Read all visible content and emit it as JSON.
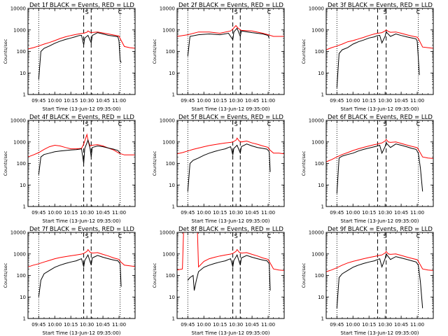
{
  "colors": {
    "events": "#000000",
    "lld": "#ff0000",
    "background": "#ffffff",
    "axes": "#000000"
  },
  "shared": {
    "xlabel": "Start Time (13-Jun-12 09:35:00)",
    "ylabel": "Counts/sec",
    "xticks": [
      "09:45",
      "10:00",
      "10:15",
      "10:30",
      "10:45",
      "11:00"
    ],
    "xtick_minutes": [
      10,
      25,
      40,
      55,
      70,
      85
    ],
    "xlim_minutes": [
      0,
      100
    ],
    "yticks": [
      "1",
      "10",
      "100",
      "1000",
      "10000"
    ],
    "ylim": [
      1,
      10000
    ],
    "yscale": "log",
    "marker_S": "S",
    "marker_C": "C"
  },
  "chart_data": [
    {
      "type": "line",
      "title": "Det 1f BLACK = Events, RED = LLD",
      "S_label_minute": 55,
      "C_label_minute": 86,
      "dotted_minutes": [
        10,
        86
      ],
      "dashed_minutes": [
        52,
        59
      ],
      "series": [
        {
          "name": "BLACK = Events",
          "x": [
            10,
            12,
            15,
            20,
            25,
            30,
            35,
            40,
            44,
            48,
            50,
            52,
            53,
            56,
            59,
            60,
            65,
            70,
            75,
            80,
            84,
            85,
            86,
            87
          ],
          "y": [
            5,
            100,
            140,
            180,
            240,
            300,
            360,
            420,
            480,
            550,
            560,
            200,
            420,
            560,
            250,
            550,
            750,
            650,
            560,
            520,
            480,
            300,
            40,
            30
          ]
        },
        {
          "name": "RED = LLD",
          "x": [
            0,
            5,
            10,
            15,
            20,
            25,
            30,
            35,
            40,
            45,
            50,
            52,
            55,
            56,
            58,
            60,
            65,
            70,
            75,
            80,
            85,
            86,
            90,
            95,
            100
          ],
          "y": [
            130,
            150,
            180,
            220,
            260,
            320,
            400,
            480,
            550,
            620,
            680,
            700,
            780,
            900,
            780,
            760,
            800,
            720,
            650,
            580,
            520,
            400,
            170,
            150,
            140
          ]
        }
      ]
    },
    {
      "type": "line",
      "title": "Det 2f BLACK = Events, RED = LLD",
      "S_label_minute": 55,
      "C_label_minute": 86,
      "dotted_minutes": [
        10,
        86
      ],
      "dashed_minutes": [
        52,
        59
      ],
      "series": [
        {
          "name": "BLACK = Events",
          "x": [
            10,
            12,
            20,
            30,
            40,
            48,
            52,
            53,
            56,
            59,
            60,
            70,
            80,
            85,
            86
          ],
          "y": [
            60,
            500,
            600,
            650,
            600,
            700,
            350,
            800,
            1200,
            500,
            900,
            750,
            650,
            550,
            400
          ]
        },
        {
          "name": "RED = LLD",
          "x": [
            0,
            10,
            20,
            30,
            40,
            50,
            52,
            55,
            57,
            60,
            70,
            80,
            85,
            90,
            100
          ],
          "y": [
            500,
            600,
            800,
            800,
            700,
            900,
            1100,
            1600,
            1200,
            950,
            900,
            700,
            600,
            500,
            500
          ]
        }
      ]
    },
    {
      "type": "line",
      "title": "Det 3f BLACK = Events, RED = LLD",
      "S_label_minute": 55,
      "C_label_minute": 86,
      "dotted_minutes": [
        10,
        86
      ],
      "dashed_minutes": [
        48,
        56
      ],
      "series": [
        {
          "name": "BLACK = Events",
          "x": [
            10,
            12,
            15,
            20,
            25,
            30,
            35,
            40,
            45,
            48,
            50,
            52,
            55,
            56,
            60,
            65,
            70,
            75,
            80,
            84,
            85,
            86,
            87
          ],
          "y": [
            2,
            80,
            120,
            150,
            220,
            280,
            340,
            420,
            480,
            550,
            560,
            250,
            500,
            800,
            500,
            650,
            550,
            480,
            420,
            380,
            300,
            50,
            8
          ]
        },
        {
          "name": "RED = LLD",
          "x": [
            0,
            5,
            10,
            15,
            20,
            25,
            30,
            35,
            40,
            45,
            48,
            50,
            52,
            55,
            56,
            58,
            60,
            65,
            70,
            75,
            80,
            85,
            86,
            90,
            95,
            100
          ],
          "y": [
            120,
            150,
            180,
            220,
            280,
            320,
            380,
            450,
            550,
            650,
            700,
            720,
            750,
            900,
            1000,
            850,
            780,
            800,
            700,
            600,
            520,
            460,
            400,
            160,
            150,
            140
          ]
        }
      ]
    },
    {
      "type": "line",
      "title": "Det 4f BLACK = Events, RED = LLD",
      "S_label_minute": 55,
      "C_label_minute": 86,
      "dotted_minutes": [
        10,
        86
      ],
      "dashed_minutes": [
        52,
        59
      ],
      "series": [
        {
          "name": "BLACK = Events",
          "x": [
            10,
            12,
            15,
            20,
            25,
            30,
            35,
            40,
            45,
            48,
            50,
            52,
            53,
            55,
            56,
            58,
            59,
            60,
            65,
            70,
            75,
            80,
            84,
            86
          ],
          "y": [
            30,
            200,
            260,
            300,
            350,
            380,
            400,
            420,
            440,
            460,
            480,
            100,
            500,
            900,
            1200,
            500,
            200,
            550,
            650,
            600,
            520,
            460,
            400,
            300
          ]
        },
        {
          "name": "RED = LLD",
          "x": [
            0,
            5,
            10,
            15,
            20,
            25,
            30,
            35,
            40,
            45,
            50,
            52,
            55,
            56,
            58,
            60,
            65,
            70,
            75,
            80,
            85,
            90,
            95,
            100
          ],
          "y": [
            200,
            250,
            320,
            450,
            600,
            700,
            650,
            550,
            480,
            480,
            500,
            800,
            2200,
            1200,
            650,
            700,
            750,
            650,
            520,
            420,
            300,
            250,
            250,
            250
          ]
        }
      ]
    },
    {
      "type": "line",
      "title": "Det 5f BLACK = Events, RED = LLD",
      "S_label_minute": 55,
      "C_label_minute": 86,
      "dotted_minutes": [
        10,
        86
      ],
      "dashed_minutes": [
        52,
        59
      ],
      "series": [
        {
          "name": "BLACK = Events",
          "x": [
            10,
            12,
            15,
            20,
            25,
            30,
            35,
            40,
            45,
            48,
            50,
            52,
            53,
            56,
            59,
            60,
            65,
            70,
            75,
            80,
            84,
            86,
            87
          ],
          "y": [
            5,
            100,
            140,
            180,
            240,
            300,
            360,
            420,
            480,
            550,
            600,
            250,
            500,
            700,
            300,
            600,
            800,
            650,
            550,
            500,
            460,
            350,
            40
          ]
        },
        {
          "name": "RED = LLD",
          "x": [
            0,
            5,
            10,
            15,
            20,
            25,
            30,
            35,
            40,
            45,
            50,
            52,
            55,
            56,
            58,
            60,
            65,
            70,
            75,
            80,
            85,
            86,
            90,
            95,
            100
          ],
          "y": [
            280,
            320,
            380,
            450,
            520,
            600,
            680,
            750,
            820,
            900,
            950,
            1000,
            1200,
            1500,
            1100,
            1000,
            1100,
            900,
            780,
            650,
            560,
            450,
            300,
            300,
            280
          ]
        }
      ]
    },
    {
      "type": "line",
      "title": "Det 6f BLACK = Events, RED = LLD",
      "S_label_minute": 55,
      "C_label_minute": 86,
      "dotted_minutes": [
        10,
        86
      ],
      "dashed_minutes": [
        48,
        56
      ],
      "series": [
        {
          "name": "BLACK = Events",
          "x": [
            10,
            12,
            15,
            20,
            25,
            30,
            35,
            40,
            45,
            48,
            50,
            52,
            55,
            56,
            60,
            65,
            70,
            75,
            80,
            84,
            86,
            88,
            90
          ],
          "y": [
            4,
            180,
            220,
            260,
            300,
            380,
            450,
            520,
            600,
            650,
            700,
            300,
            600,
            900,
            550,
            800,
            700,
            600,
            500,
            450,
            300,
            60,
            5
          ]
        },
        {
          "name": "RED = LLD",
          "x": [
            0,
            5,
            10,
            15,
            20,
            25,
            30,
            35,
            40,
            45,
            48,
            50,
            52,
            55,
            56,
            58,
            60,
            65,
            70,
            75,
            80,
            85,
            86,
            90,
            95,
            100
          ],
          "y": [
            120,
            150,
            200,
            260,
            320,
            400,
            480,
            560,
            650,
            750,
            800,
            850,
            900,
            1100,
            1300,
            1000,
            950,
            1000,
            850,
            720,
            620,
            540,
            450,
            200,
            180,
            170
          ]
        }
      ]
    },
    {
      "type": "line",
      "title": "Det 7f BLACK = Events, RED = LLD",
      "S_label_minute": 55,
      "C_label_minute": 86,
      "dotted_minutes": [
        10,
        86
      ],
      "dashed_minutes": [
        52,
        59
      ],
      "series": [
        {
          "name": "BLACK = Events",
          "x": [
            10,
            12,
            15,
            20,
            25,
            30,
            35,
            40,
            45,
            48,
            50,
            52,
            53,
            56,
            59,
            60,
            65,
            70,
            75,
            80,
            84,
            86,
            87
          ],
          "y": [
            10,
            60,
            120,
            170,
            240,
            300,
            360,
            420,
            480,
            550,
            600,
            250,
            500,
            900,
            300,
            650,
            850,
            700,
            600,
            520,
            480,
            350,
            30
          ]
        },
        {
          "name": "RED = LLD",
          "x": [
            0,
            5,
            10,
            15,
            20,
            25,
            30,
            35,
            40,
            45,
            50,
            52,
            55,
            56,
            58,
            60,
            65,
            70,
            75,
            80,
            85,
            86,
            90,
            95,
            100
          ],
          "y": [
            250,
            300,
            350,
            420,
            500,
            600,
            680,
            750,
            820,
            900,
            980,
            1050,
            1300,
            1600,
            1200,
            1100,
            1150,
            950,
            800,
            650,
            560,
            450,
            300,
            280,
            260
          ]
        }
      ]
    },
    {
      "type": "line",
      "title": "Det 8f BLACK = Events, RED = LLD",
      "S_label_minute": 55,
      "C_label_minute": 86,
      "dotted_minutes": [
        10,
        86
      ],
      "dashed_minutes": [
        52,
        59
      ],
      "series": [
        {
          "name": "BLACK = Events",
          "x": [
            10,
            12,
            15,
            16,
            18,
            20,
            25,
            30,
            35,
            40,
            45,
            48,
            50,
            52,
            53,
            56,
            59,
            60,
            65,
            70,
            75,
            80,
            84,
            86,
            87
          ],
          "y": [
            60,
            80,
            100,
            20,
            60,
            150,
            240,
            300,
            360,
            420,
            480,
            550,
            600,
            250,
            500,
            900,
            300,
            650,
            850,
            700,
            600,
            520,
            480,
            350,
            20
          ]
        },
        {
          "name": "RED = LLD",
          "x": [
            0,
            5,
            6,
            7,
            12,
            13,
            14,
            19,
            20,
            25,
            30,
            35,
            40,
            45,
            50,
            52,
            55,
            56,
            58,
            60,
            65,
            70,
            75,
            80,
            85,
            86,
            90,
            95,
            100
          ],
          "y": [
            180,
            200,
            10000,
            10000,
            10000,
            10000,
            10000,
            10000,
            250,
            450,
            600,
            700,
            800,
            900,
            980,
            1050,
            1300,
            1600,
            1200,
            1100,
            1150,
            950,
            800,
            650,
            560,
            450,
            200,
            180,
            170
          ]
        }
      ]
    },
    {
      "type": "line",
      "title": "Det 9f BLACK = Events, RED = LLD",
      "S_label_minute": 55,
      "C_label_minute": 86,
      "dotted_minutes": [
        10,
        86
      ],
      "dashed_minutes": [
        48,
        56
      ],
      "series": [
        {
          "name": "BLACK = Events",
          "x": [
            10,
            12,
            15,
            20,
            25,
            30,
            35,
            40,
            45,
            48,
            50,
            52,
            55,
            56,
            60,
            65,
            70,
            75,
            80,
            84,
            86,
            88,
            90
          ],
          "y": [
            3,
            80,
            120,
            170,
            240,
            300,
            360,
            420,
            480,
            550,
            600,
            250,
            600,
            1000,
            550,
            750,
            650,
            560,
            480,
            420,
            300,
            50,
            3
          ]
        },
        {
          "name": "RED = LLD",
          "x": [
            0,
            5,
            10,
            15,
            20,
            25,
            30,
            35,
            40,
            45,
            48,
            50,
            52,
            55,
            56,
            58,
            60,
            65,
            70,
            75,
            80,
            85,
            86,
            90,
            95,
            100
          ],
          "y": [
            150,
            180,
            230,
            300,
            380,
            450,
            520,
            600,
            680,
            760,
            820,
            860,
            900,
            1100,
            1300,
            1000,
            950,
            1000,
            850,
            720,
            620,
            540,
            450,
            200,
            180,
            170
          ]
        }
      ]
    }
  ]
}
